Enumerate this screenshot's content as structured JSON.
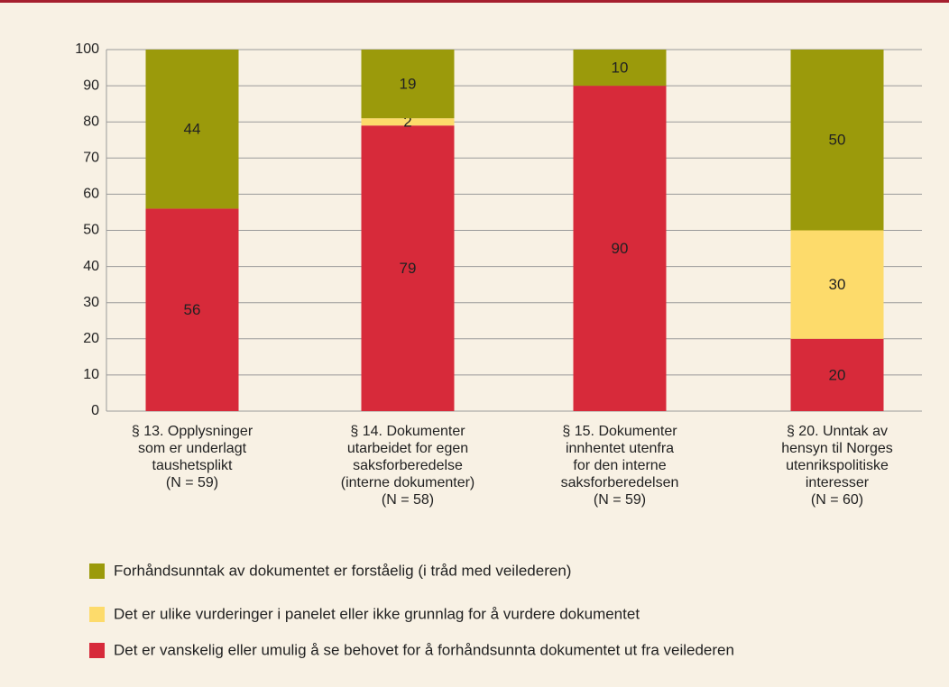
{
  "chart_data": {
    "type": "stacked-bar",
    "categories": [
      [
        "§ 13. Opplysninger",
        "som er underlagt",
        "taushetsplikt",
        "(N = 59)"
      ],
      [
        "§ 14. Dokumenter",
        "utarbeidet for egen",
        "saksforberedelse",
        "(interne dokumenter)",
        "(N = 58)"
      ],
      [
        "§ 15. Dokumenter",
        "innhentet utenfra",
        "for den interne",
        "saksforberedelsen",
        "(N = 59)"
      ],
      [
        "§ 20. Unntak av",
        "hensyn til Norges",
        "utenrikspolitiske",
        "interesser",
        "(N = 60)"
      ]
    ],
    "series": [
      {
        "name": "Forhåndsunntak av dokumentet er forståelig (i tråd med veilederen)",
        "color": "#9b9a0b",
        "values": [
          44,
          19,
          10,
          50
        ]
      },
      {
        "name": "Det er ulike vurderinger i panelet eller ikke grunnlag for å vurdere dokumentet",
        "color": "#fddb6b",
        "values": [
          0,
          2,
          0,
          30
        ]
      },
      {
        "name": "Det er vanskelig eller umulig å se behovet for å forhåndsunnta dokumentet ut fra veilederen",
        "color": "#d72a3a",
        "values": [
          56,
          79,
          90,
          20
        ]
      }
    ],
    "ylim": [
      0,
      100
    ],
    "yticks": [
      0,
      10,
      20,
      30,
      40,
      50,
      60,
      70,
      80,
      90,
      100
    ],
    "grid": true
  }
}
